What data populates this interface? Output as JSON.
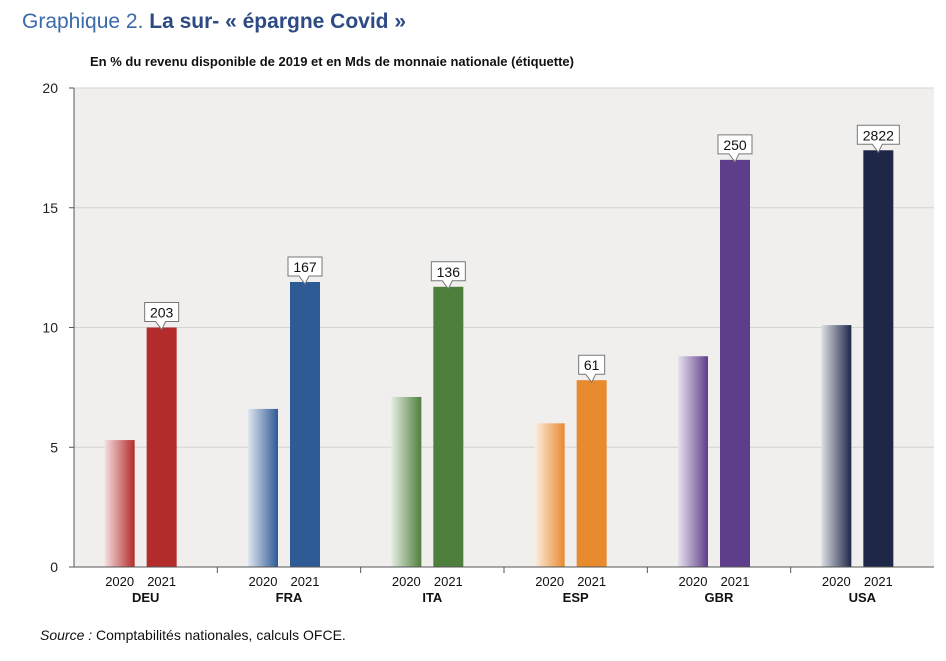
{
  "figure": {
    "number": "Graphique 2.",
    "title": "La sur- « épargne Covid »"
  },
  "source": {
    "label": "Source :",
    "text": "Comptabilités nationales, calculs OFCE."
  },
  "chart_data": {
    "type": "bar",
    "title": "La sur- « épargne Covid »",
    "subtitle": "En % du revenu disponible de 2019 et en Mds de monnaie nationale (étiquette)",
    "categories": [
      "DEU",
      "FRA",
      "ITA",
      "ESP",
      "GBR",
      "USA"
    ],
    "sub_categories": [
      "2020",
      "2021"
    ],
    "series": [
      {
        "name": "2020",
        "values": [
          5.3,
          6.6,
          7.1,
          6.0,
          8.8,
          10.1
        ]
      },
      {
        "name": "2021",
        "values": [
          10.0,
          11.9,
          11.7,
          7.8,
          17.0,
          17.4
        ]
      }
    ],
    "labels_2021": [
      "203",
      "167",
      "136",
      "61",
      "250",
      "2822"
    ],
    "colors": [
      "#b32b2b",
      "#2e5a96",
      "#4f7f3c",
      "#e88a2e",
      "#5e3d8a",
      "#1f2748"
    ],
    "yticks": [
      "0",
      "5",
      "10",
      "15",
      "20"
    ],
    "ylim": [
      0,
      20
    ],
    "xlabel": "",
    "ylabel": "",
    "grid": true,
    "legend": "none"
  }
}
